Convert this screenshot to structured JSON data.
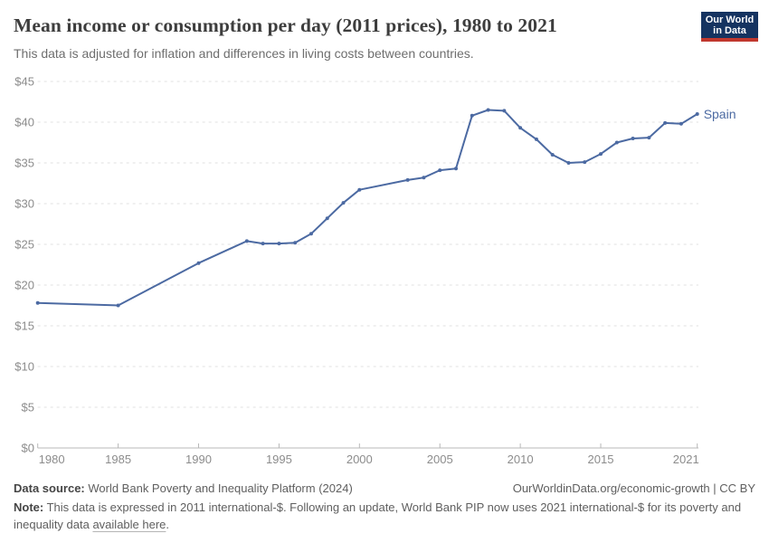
{
  "header": {
    "title": "Mean income or consumption per day (2011 prices), 1980 to 2021",
    "subtitle": "This data is adjusted for inflation and differences in living costs between countries.",
    "logo": {
      "line1": "Our World",
      "line2": "in Data",
      "bg_color": "#153360",
      "accent_color": "#c0382e"
    }
  },
  "chart_data": {
    "type": "line",
    "title": "Mean income or consumption per day (2011 prices), 1980 to 2021",
    "xlabel": "",
    "ylabel": "",
    "xlim": [
      1980,
      2021
    ],
    "ylim": [
      0,
      45
    ],
    "grid": true,
    "legend_position": "end-of-line-label",
    "x_ticks": [
      1980,
      1985,
      1990,
      1995,
      2000,
      2005,
      2010,
      2015,
      2021
    ],
    "y_ticks": [
      0,
      5,
      10,
      15,
      20,
      25,
      30,
      35,
      40,
      45
    ],
    "y_tick_prefix": "$",
    "series": [
      {
        "name": "Spain",
        "color": "#4c6aa2",
        "points": [
          [
            1980,
            17.8
          ],
          [
            1985,
            17.5
          ],
          [
            1990,
            22.7
          ],
          [
            1993,
            25.4
          ],
          [
            1994,
            25.1
          ],
          [
            1995,
            25.1
          ],
          [
            1996,
            25.2
          ],
          [
            1997,
            26.3
          ],
          [
            1998,
            28.2
          ],
          [
            1999,
            30.1
          ],
          [
            2000,
            31.7
          ],
          [
            2003,
            32.9
          ],
          [
            2004,
            33.2
          ],
          [
            2005,
            34.1
          ],
          [
            2006,
            34.3
          ],
          [
            2007,
            40.8
          ],
          [
            2008,
            41.5
          ],
          [
            2009,
            41.4
          ],
          [
            2010,
            39.3
          ],
          [
            2011,
            37.9
          ],
          [
            2012,
            36.0
          ],
          [
            2013,
            35.0
          ],
          [
            2014,
            35.1
          ],
          [
            2015,
            36.1
          ],
          [
            2016,
            37.5
          ],
          [
            2017,
            38.0
          ],
          [
            2018,
            38.1
          ],
          [
            2019,
            39.9
          ],
          [
            2020,
            39.8
          ],
          [
            2021,
            41.0
          ]
        ]
      }
    ],
    "colors": {
      "gridline": "#e2e2e2",
      "axis": "#b8b8b8",
      "tick_label": "#8c8c8c"
    }
  },
  "footer": {
    "datasource_label": "Data source:",
    "datasource_text": " World Bank Poverty and Inequality Platform (2024)",
    "rights": "OurWorldinData.org/economic-growth | CC BY",
    "note_label": "Note:",
    "note_text_1": " This data is expressed in 2011 international-$. Following an update, World Bank PIP now uses 2021 international-$ for its poverty and inequality data ",
    "note_link": "available here",
    "note_text_2": "."
  }
}
